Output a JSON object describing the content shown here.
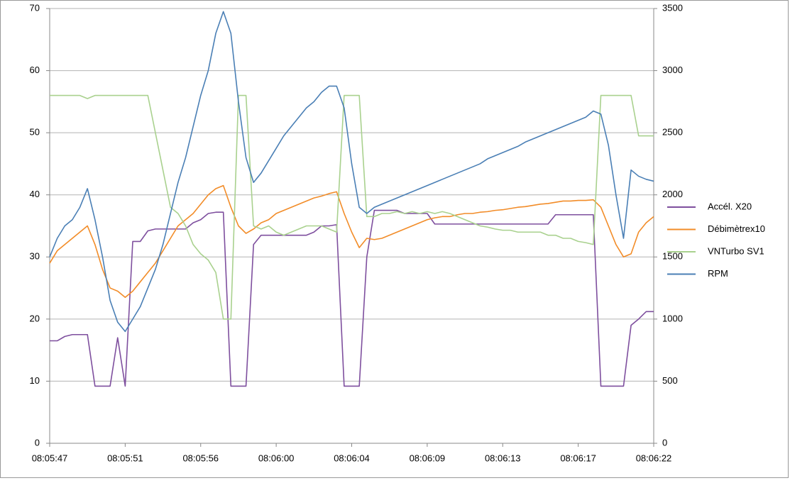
{
  "chart_data": {
    "type": "line",
    "categories": [
      "08:05:47",
      null,
      null,
      null,
      null,
      null,
      null,
      null,
      null,
      null,
      "08:05:51",
      null,
      null,
      null,
      null,
      null,
      null,
      null,
      null,
      null,
      "08:05:56",
      null,
      null,
      null,
      null,
      null,
      null,
      null,
      null,
      null,
      "08:06:00",
      null,
      null,
      null,
      null,
      null,
      null,
      null,
      null,
      null,
      "08:06:04",
      null,
      null,
      null,
      null,
      null,
      null,
      null,
      null,
      null,
      "08:06:09",
      null,
      null,
      null,
      null,
      null,
      null,
      null,
      null,
      null,
      "08:06:13",
      null,
      null,
      null,
      null,
      null,
      null,
      null,
      null,
      null,
      "08:06:17",
      null,
      null,
      null,
      null,
      null,
      null,
      null,
      null,
      null,
      "08:06:22"
    ],
    "ylim": [
      0,
      70
    ],
    "yticks": [
      0,
      10,
      20,
      30,
      40,
      50,
      60,
      70
    ],
    "y2lim": [
      0,
      3500
    ],
    "y2ticks": [
      0,
      500,
      1000,
      1500,
      2000,
      2500,
      3000,
      3500
    ],
    "grid": true,
    "legend": "right",
    "series": [
      {
        "name": "Accél. X20",
        "color": "#7e4f9e",
        "values": [
          16.5,
          16.5,
          17.2,
          17.5,
          17.5,
          17.5,
          9.2,
          9.2,
          9.2,
          17,
          9.2,
          32.5,
          32.5,
          34.2,
          34.5,
          34.5,
          34.5,
          34.5,
          34.5,
          35.5,
          36,
          37,
          37.2,
          37.2,
          9.2,
          9.2,
          9.2,
          32,
          33.5,
          33.5,
          33.5,
          33.5,
          33.5,
          33.5,
          33.5,
          34,
          35,
          35,
          35.2,
          9.2,
          9.2,
          9.2,
          30,
          37.5,
          37.5,
          37.5,
          37.5,
          37,
          37,
          37,
          37,
          35.3,
          35.3,
          35.3,
          35.3,
          35.3,
          35.3,
          35.3,
          35.3,
          35.3,
          35.3,
          35.3,
          35.3,
          35.3,
          35.3,
          35.3,
          35.3,
          36.8,
          36.8,
          36.8,
          36.8,
          36.8,
          36.8,
          9.2,
          9.2,
          9.2,
          9.2,
          19,
          20,
          21.2,
          21.2
        ]
      },
      {
        "name": "Débimètrex10",
        "color": "#f28c28",
        "values": [
          29,
          31,
          32,
          33,
          34,
          35,
          32,
          28,
          25,
          24.5,
          23.5,
          24.5,
          26,
          27.5,
          29,
          31,
          33,
          35,
          36,
          37,
          38.5,
          40,
          41,
          41.5,
          38,
          35,
          33.8,
          34.5,
          35.5,
          36,
          37,
          37.5,
          38,
          38.5,
          39,
          39.5,
          39.8,
          40.2,
          40.5,
          37,
          34,
          31.5,
          33,
          32.8,
          33,
          33.5,
          34,
          34.5,
          35,
          35.5,
          36,
          36.3,
          36.5,
          36.5,
          36.8,
          37,
          37,
          37.2,
          37.3,
          37.5,
          37.6,
          37.8,
          38,
          38.1,
          38.3,
          38.5,
          38.6,
          38.8,
          39,
          39,
          39.1,
          39.1,
          39.2,
          38,
          35,
          32,
          30,
          30.5,
          34,
          35.5,
          36.5
        ]
      },
      {
        "name": "VNTurbo SV1",
        "color": "#a9d18e",
        "values": [
          56,
          56,
          56,
          56,
          56,
          55.5,
          56,
          56,
          56,
          56,
          56,
          56,
          56,
          56,
          50,
          44,
          38,
          37,
          35,
          32,
          30.5,
          29.5,
          27.5,
          20,
          20,
          56,
          56,
          35,
          34.5,
          35,
          34,
          33.5,
          34,
          34.5,
          35,
          35,
          35,
          34.5,
          34,
          56,
          56,
          56,
          36.5,
          36.5,
          37,
          37,
          37.3,
          37,
          37.3,
          37,
          37.3,
          37,
          37.3,
          37,
          36.5,
          36,
          35.5,
          35,
          34.8,
          34.5,
          34.3,
          34.3,
          34,
          34,
          34,
          34,
          33.5,
          33.5,
          33,
          33,
          32.5,
          32.3,
          32,
          56,
          56,
          56,
          56,
          56,
          49.5,
          49.5,
          49.5
        ]
      },
      {
        "name": "RPM",
        "color": "#4a7fb5",
        "axis": "y2",
        "values": [
          1500,
          1650,
          1750,
          1800,
          1900,
          2050,
          1800,
          1500,
          1150,
          975,
          900,
          1000,
          1100,
          1250,
          1400,
          1600,
          1850,
          2100,
          2300,
          2550,
          2800,
          3000,
          3300,
          3475,
          3300,
          2750,
          2300,
          2100,
          2175,
          2275,
          2375,
          2475,
          2550,
          2625,
          2700,
          2750,
          2825,
          2875,
          2875,
          2700,
          2250,
          1900,
          1850,
          1900,
          1925,
          1950,
          1975,
          2000,
          2025,
          2050,
          2075,
          2100,
          2125,
          2150,
          2175,
          2200,
          2225,
          2250,
          2290,
          2315,
          2340,
          2365,
          2390,
          2425,
          2450,
          2475,
          2500,
          2525,
          2550,
          2575,
          2600,
          2625,
          2675,
          2650,
          2400,
          2000,
          1650,
          2200,
          2150,
          2125,
          2110
        ]
      }
    ]
  }
}
